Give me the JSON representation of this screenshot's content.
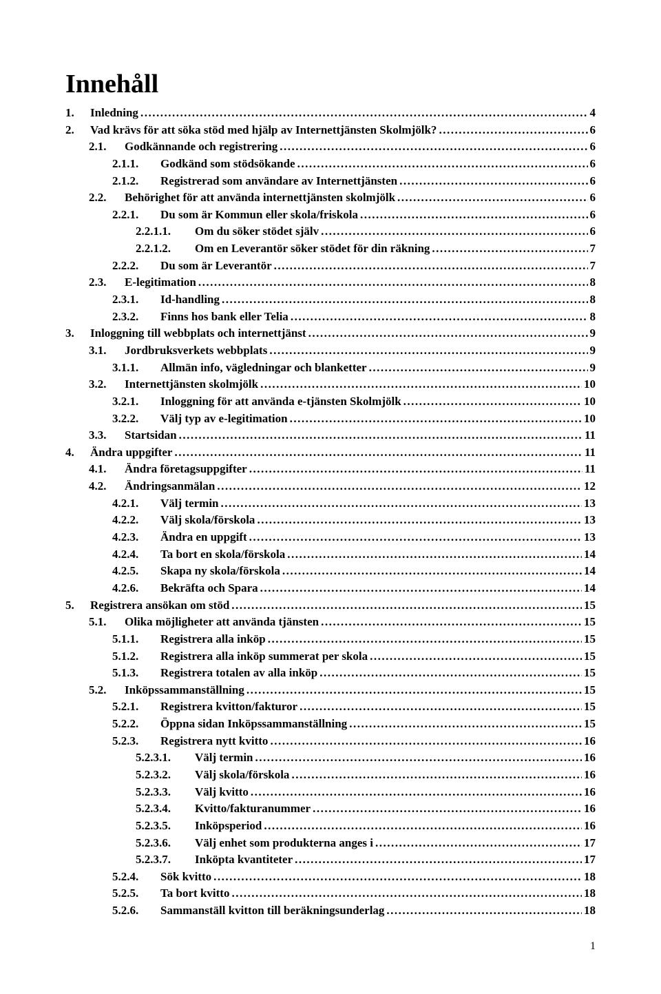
{
  "heading": "Innehåll",
  "page_number": "1",
  "entries": [
    {
      "level": 1,
      "num": "1.",
      "title": "Inledning",
      "page": "4"
    },
    {
      "level": 1,
      "num": "2.",
      "title": "Vad krävs för att söka stöd med hjälp av Internettjänsten Skolmjölk?",
      "page": "6"
    },
    {
      "level": 2,
      "num": "2.1.",
      "title": "Godkännande och registrering",
      "page": "6"
    },
    {
      "level": 3,
      "num": "2.1.1.",
      "title": "Godkänd som stödsökande",
      "page": "6"
    },
    {
      "level": 3,
      "num": "2.1.2.",
      "title": "Registrerad som användare av Internettjänsten",
      "page": "6"
    },
    {
      "level": 2,
      "num": "2.2.",
      "title": "Behörighet för att använda internettjänsten skolmjölk",
      "page": "6"
    },
    {
      "level": 3,
      "num": "2.2.1.",
      "title": "Du som är Kommun eller skola/friskola",
      "page": "6"
    },
    {
      "level": 4,
      "num": "2.2.1.1.",
      "title": "Om du söker stödet själv",
      "page": "6"
    },
    {
      "level": 4,
      "num": "2.2.1.2.",
      "title": "Om en Leverantör söker stödet för din räkning",
      "page": "7"
    },
    {
      "level": 3,
      "num": "2.2.2.",
      "title": "Du som är Leverantör",
      "page": "7"
    },
    {
      "level": 2,
      "num": "2.3.",
      "title": "E-legitimation",
      "page": "8"
    },
    {
      "level": 3,
      "num": "2.3.1.",
      "title": "Id-handling",
      "page": "8"
    },
    {
      "level": 3,
      "num": "2.3.2.",
      "title": "Finns hos bank eller Telia",
      "page": "8"
    },
    {
      "level": 1,
      "num": "3.",
      "title": "Inloggning till webbplats och internettjänst",
      "page": "9"
    },
    {
      "level": 2,
      "num": "3.1.",
      "title": "Jordbruksverkets webbplats",
      "page": "9"
    },
    {
      "level": 3,
      "num": "3.1.1.",
      "title": "Allmän info, vägledningar och blanketter",
      "page": "9"
    },
    {
      "level": 2,
      "num": "3.2.",
      "title": "Internettjänsten skolmjölk",
      "page": "10"
    },
    {
      "level": 3,
      "num": "3.2.1.",
      "title": "Inloggning för att använda e-tjänsten Skolmjölk",
      "page": "10"
    },
    {
      "level": 3,
      "num": "3.2.2.",
      "title": "Välj typ av e-legitimation",
      "page": "10"
    },
    {
      "level": 2,
      "num": "3.3.",
      "title": "Startsidan",
      "page": "11"
    },
    {
      "level": 1,
      "num": "4.",
      "title": "Ändra uppgifter",
      "page": "11"
    },
    {
      "level": 2,
      "num": "4.1.",
      "title": "Ändra företagsuppgifter",
      "page": "11"
    },
    {
      "level": 2,
      "num": "4.2.",
      "title": "Ändringsanmälan",
      "page": "12"
    },
    {
      "level": 3,
      "num": "4.2.1.",
      "title": "Välj termin",
      "page": "13"
    },
    {
      "level": 3,
      "num": "4.2.2.",
      "title": "Välj skola/förskola",
      "page": "13"
    },
    {
      "level": 3,
      "num": "4.2.3.",
      "title": "Ändra en uppgift",
      "page": "13"
    },
    {
      "level": 3,
      "num": "4.2.4.",
      "title": "Ta bort en skola/förskola",
      "page": "14"
    },
    {
      "level": 3,
      "num": "4.2.5.",
      "title": "Skapa ny skola/förskola",
      "page": "14"
    },
    {
      "level": 3,
      "num": "4.2.6.",
      "title": "Bekräfta och Spara",
      "page": "14"
    },
    {
      "level": 1,
      "num": "5.",
      "title": "Registrera ansökan om stöd",
      "page": "15"
    },
    {
      "level": 2,
      "num": "5.1.",
      "title": "Olika möjligheter att använda tjänsten",
      "page": "15"
    },
    {
      "level": 3,
      "num": "5.1.1.",
      "title": "Registrera alla inköp",
      "page": "15"
    },
    {
      "level": 3,
      "num": "5.1.2.",
      "title": "Registrera alla inköp summerat per skola",
      "page": "15"
    },
    {
      "level": 3,
      "num": "5.1.3.",
      "title": "Registrera totalen av alla inköp",
      "page": "15"
    },
    {
      "level": 2,
      "num": "5.2.",
      "title": "Inköpssammanställning",
      "page": "15"
    },
    {
      "level": 3,
      "num": "5.2.1.",
      "title": "Registrera kvitton/fakturor",
      "page": "15"
    },
    {
      "level": 3,
      "num": "5.2.2.",
      "title": "Öppna sidan Inköpssammanställning",
      "page": "15"
    },
    {
      "level": 3,
      "num": "5.2.3.",
      "title": "Registrera nytt kvitto",
      "page": "16"
    },
    {
      "level": 4,
      "num": "5.2.3.1.",
      "title": "Välj termin",
      "page": "16"
    },
    {
      "level": 4,
      "num": "5.2.3.2.",
      "title": "Välj skola/förskola",
      "page": "16"
    },
    {
      "level": 4,
      "num": "5.2.3.3.",
      "title": "Välj kvitto",
      "page": "16"
    },
    {
      "level": 4,
      "num": "5.2.3.4.",
      "title": "Kvitto/fakturanummer",
      "page": "16"
    },
    {
      "level": 4,
      "num": "5.2.3.5.",
      "title": "Inköpsperiod",
      "page": "16"
    },
    {
      "level": 4,
      "num": "5.2.3.6.",
      "title": "Välj enhet som produkterna anges i",
      "page": "17"
    },
    {
      "level": 4,
      "num": "5.2.3.7.",
      "title": "Inköpta kvantiteter",
      "page": "17"
    },
    {
      "level": 3,
      "num": "5.2.4.",
      "title": "Sök kvitto",
      "page": "18"
    },
    {
      "level": 3,
      "num": "5.2.5.",
      "title": "Ta bort kvitto",
      "page": "18"
    },
    {
      "level": 3,
      "num": "5.2.6.",
      "title": "Sammanställ kvitton till beräkningsunderlag",
      "page": "18"
    }
  ]
}
